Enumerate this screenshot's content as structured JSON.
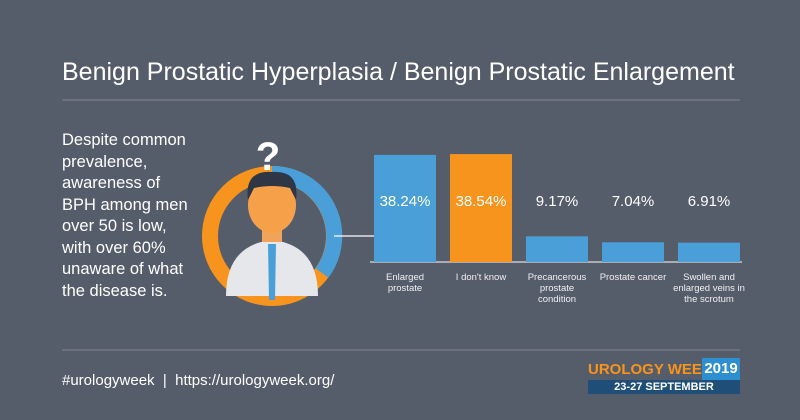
{
  "chart_data": {
    "type": "bar",
    "title": "Benign Prostatic Hyperplasia / Benign Prostatic Enlargement",
    "categories": [
      "Enlarged prostate",
      "I don't know",
      "Precancerous prostate condition",
      "Prostate cancer",
      "Swollen and enlarged veins in the scrotum"
    ],
    "values": [
      38.24,
      38.54,
      9.17,
      7.04,
      6.91
    ],
    "value_labels": [
      "38.24%",
      "38.54%",
      "9.17%",
      "7.04%",
      "6.91%"
    ],
    "colors": [
      "#4a9fd8",
      "#f7941d",
      "#4a9fd8",
      "#4a9fd8",
      "#4a9fd8"
    ]
  },
  "description": "Despite common prevalence, awareness of BPH among men over 50 is low, with over 60% unaware of what the disease is.",
  "footer": "#urologyweek  |  https://urologyweek.org/",
  "logo": {
    "name": "UROLOGY WEEK",
    "year": "2019",
    "dates": "23-27 SEPTEMBER"
  }
}
